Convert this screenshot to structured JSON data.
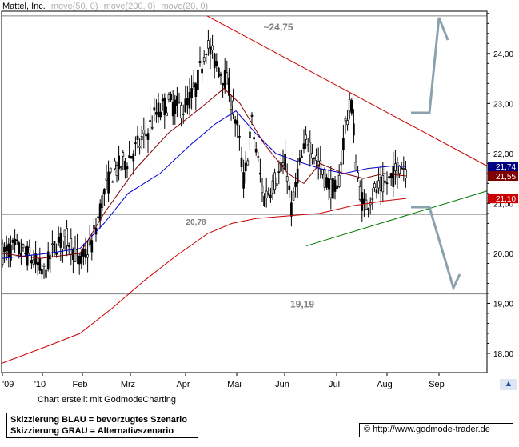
{
  "header": {
    "title": "Mattel, Inc.",
    "ma_labels": [
      {
        "text": "move(50, 0)",
        "color": "#b0b0b0"
      },
      {
        "text": "move(200, 0)",
        "color": "#b0b0b0"
      },
      {
        "text": "move(20, 0)",
        "color": "#b0b0b0"
      }
    ]
  },
  "credit": "Chart erstellt mit GodmodeCharting",
  "legend": {
    "line1": "Skizzierung BLAU = bevorzugtes Szenario",
    "line2": "Skizzierung GRAU = Alternativszenario"
  },
  "copyright": {
    "symbol": "©",
    "text": "http://www.godmode-trader.de"
  },
  "chart_data": {
    "type": "candlestick",
    "title": "Mattel, Inc.",
    "x_tick_labels": [
      "'09",
      "'10",
      "Feb",
      "Mrz",
      "Apr",
      "Mai",
      "Jun",
      "Jul",
      "Aug",
      "Sep"
    ],
    "y_tick_labels": [
      "18,00",
      "19,00",
      "20,00",
      "21,00",
      "22,00",
      "23,00",
      "24,00"
    ],
    "ylim": [
      17.6,
      25.1
    ],
    "horizontal_levels": [
      {
        "value": 24.75,
        "label": "~24,75"
      },
      {
        "value": 20.78,
        "label": "20,78"
      },
      {
        "value": 19.19,
        "label": "19,19"
      }
    ],
    "price_badges": [
      {
        "label": "21,74",
        "value": 21.74,
        "bg": "#000080"
      },
      {
        "label": "21,55",
        "value": 21.55,
        "bg": "#800000"
      },
      {
        "label": "21,10",
        "value": 21.1,
        "bg": "#cc0000"
      }
    ],
    "trendlines": [
      {
        "name": "resistance",
        "color": "#cc0000",
        "from": {
          "x": "Apr",
          "y": 24.75
        },
        "to": {
          "x": "Sep",
          "y": 21.75
        }
      },
      {
        "name": "support",
        "color": "#007700",
        "from": {
          "x": "Jun",
          "y": 20.15
        },
        "to": {
          "x": "Sep",
          "y": 21.25
        }
      }
    ],
    "series": [
      {
        "name": "move(200, 0)",
        "color": "#cc0000"
      },
      {
        "name": "move(50, 0)",
        "color": "#0000cc"
      },
      {
        "name": "move(20, 0)",
        "color": "#800000"
      }
    ],
    "grid": false
  }
}
